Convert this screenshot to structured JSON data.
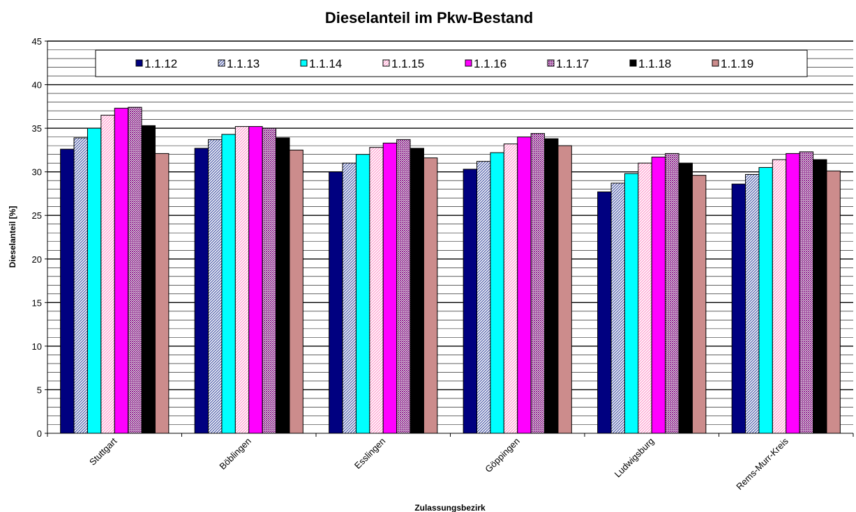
{
  "chart_data": {
    "type": "bar",
    "title": "Dieselanteil im Pkw-Bestand",
    "xlabel": "Zulassungsbezirk",
    "ylabel": "Dieselanteil  [%]",
    "ylim": [
      0,
      45
    ],
    "yticks": [
      0,
      5,
      10,
      15,
      20,
      25,
      30,
      35,
      40,
      45
    ],
    "grid": true,
    "legend_position": "top",
    "categories": [
      "Stuttgart",
      "Böblingen",
      "Esslingen",
      "Göppingen",
      "Ludwigsburg",
      "Rems-Murr-Kreis"
    ],
    "series": [
      {
        "name": "1.1.12",
        "color": "#000080",
        "pattern": "solid",
        "values": [
          32.6,
          32.7,
          30.0,
          30.3,
          27.7,
          28.6
        ]
      },
      {
        "name": "1.1.13",
        "color": "#9999ff",
        "pattern": "diagonal-dense",
        "values": [
          33.9,
          33.7,
          31.0,
          31.2,
          28.7,
          29.7
        ]
      },
      {
        "name": "1.1.14",
        "color": "#00ffff",
        "pattern": "solid",
        "values": [
          35.0,
          34.3,
          32.0,
          32.2,
          29.8,
          30.5
        ]
      },
      {
        "name": "1.1.15",
        "color": "#ff99cc",
        "pattern": "diagonal-light",
        "values": [
          36.5,
          35.2,
          32.8,
          33.2,
          31.0,
          31.4
        ]
      },
      {
        "name": "1.1.16",
        "color": "#ff00ff",
        "pattern": "solid",
        "values": [
          37.3,
          35.2,
          33.3,
          34.0,
          31.7,
          32.1
        ]
      },
      {
        "name": "1.1.17",
        "color": "#993399",
        "pattern": "dots",
        "values": [
          37.4,
          35.0,
          33.7,
          34.4,
          32.1,
          32.3
        ]
      },
      {
        "name": "1.1.18",
        "color": "#000000",
        "pattern": "solid",
        "values": [
          35.3,
          33.9,
          32.7,
          33.8,
          31.0,
          31.4
        ]
      },
      {
        "name": "1.1.19",
        "color": "#cc8c8c",
        "pattern": "solid",
        "values": [
          32.1,
          32.5,
          31.6,
          33.0,
          29.6,
          30.1
        ]
      }
    ]
  }
}
